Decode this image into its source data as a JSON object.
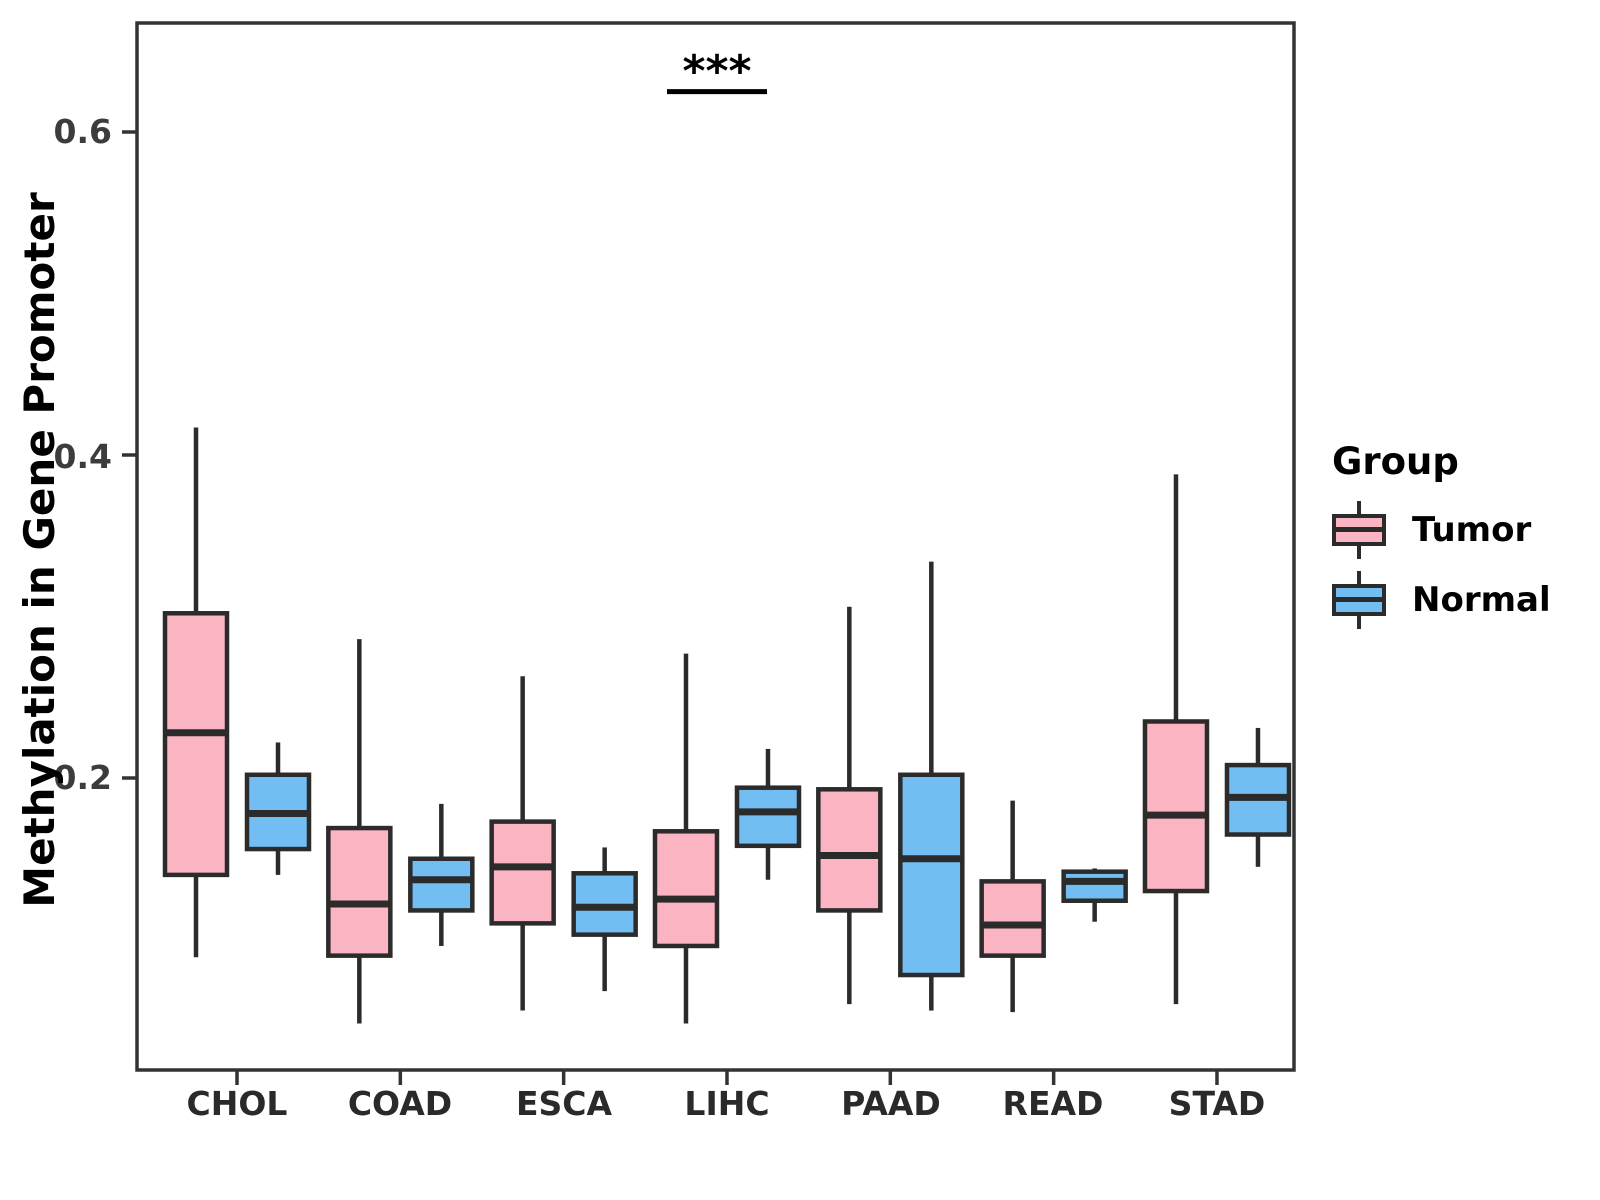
{
  "figure": {
    "background": "#FFFFFF"
  },
  "chart_data": {
    "type": "boxplot",
    "title": "",
    "ylabel": "Methylation in Gene Promoter",
    "xlabel": "",
    "categories": [
      "CHOL",
      "COAD",
      "ESCA",
      "LIHC",
      "PAAD",
      "READ",
      "STAD"
    ],
    "yticks": {
      "labels": [
        "0.2",
        "0.4",
        "0.6"
      ],
      "values": [
        0.2,
        0.4,
        0.6
      ]
    },
    "ylim": [
      0.019,
      0.667
    ],
    "grid": "none",
    "panel_border_color": "#333333",
    "box_line_color": "#2B2B2B",
    "legend": {
      "title": "Group",
      "position": "right",
      "entries": [
        {
          "label": "Tumor",
          "color": "#FBB4C2"
        },
        {
          "label": "Normal",
          "color": "#72BDF2"
        }
      ]
    },
    "annotation": {
      "text": "***",
      "over_category": "LIHC",
      "bar_y": 0.625
    },
    "series": [
      {
        "name": "Tumor",
        "color": "#FBB4C2",
        "boxes": [
          {
            "category": "CHOL",
            "low": 0.089,
            "q1": 0.14,
            "median": 0.228,
            "q3": 0.302,
            "high": 0.417
          },
          {
            "category": "COAD",
            "low": 0.048,
            "q1": 0.09,
            "median": 0.122,
            "q3": 0.169,
            "high": 0.286
          },
          {
            "category": "ESCA",
            "low": 0.056,
            "q1": 0.11,
            "median": 0.145,
            "q3": 0.173,
            "high": 0.263
          },
          {
            "category": "LIHC",
            "low": 0.048,
            "q1": 0.096,
            "median": 0.125,
            "q3": 0.167,
            "high": 0.277
          },
          {
            "category": "PAAD",
            "low": 0.06,
            "q1": 0.118,
            "median": 0.152,
            "q3": 0.193,
            "high": 0.306
          },
          {
            "category": "READ",
            "low": 0.055,
            "q1": 0.09,
            "median": 0.109,
            "q3": 0.136,
            "high": 0.186
          },
          {
            "category": "STAD",
            "low": 0.06,
            "q1": 0.13,
            "median": 0.177,
            "q3": 0.235,
            "high": 0.388
          }
        ]
      },
      {
        "name": "Normal",
        "color": "#72BDF2",
        "boxes": [
          {
            "category": "CHOL",
            "low": 0.14,
            "q1": 0.156,
            "median": 0.178,
            "q3": 0.202,
            "high": 0.222
          },
          {
            "category": "COAD",
            "low": 0.096,
            "q1": 0.118,
            "median": 0.137,
            "q3": 0.15,
            "high": 0.184
          },
          {
            "category": "ESCA",
            "low": 0.068,
            "q1": 0.103,
            "median": 0.12,
            "q3": 0.141,
            "high": 0.157
          },
          {
            "category": "LIHC",
            "low": 0.137,
            "q1": 0.158,
            "median": 0.179,
            "q3": 0.194,
            "high": 0.218
          },
          {
            "category": "PAAD",
            "low": 0.056,
            "q1": 0.078,
            "median": 0.15,
            "q3": 0.202,
            "high": 0.334
          },
          {
            "category": "READ",
            "low": 0.111,
            "q1": 0.124,
            "median": 0.136,
            "q3": 0.142,
            "high": 0.144
          },
          {
            "category": "STAD",
            "low": 0.145,
            "q1": 0.165,
            "median": 0.188,
            "q3": 0.208,
            "high": 0.231
          }
        ]
      }
    ]
  }
}
